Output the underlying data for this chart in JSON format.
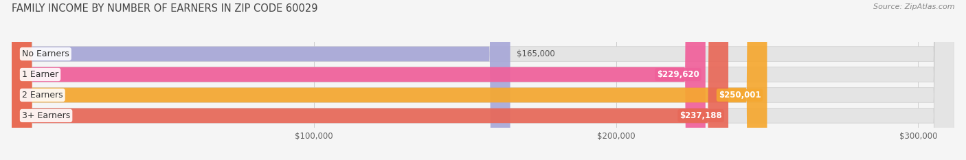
{
  "title": "FAMILY INCOME BY NUMBER OF EARNERS IN ZIP CODE 60029",
  "source": "Source: ZipAtlas.com",
  "categories": [
    "No Earners",
    "1 Earner",
    "2 Earners",
    "3+ Earners"
  ],
  "values": [
    165000,
    229620,
    250001,
    237188
  ],
  "value_labels": [
    "$165,000",
    "$229,620",
    "$250,001",
    "$237,188"
  ],
  "bar_colors": [
    "#a8a8d8",
    "#f0609a",
    "#f5a830",
    "#e86858"
  ],
  "xlim": [
    0,
    312000
  ],
  "xticks": [
    100000,
    200000,
    300000
  ],
  "xtick_labels": [
    "$100,000",
    "$200,000",
    "$300,000"
  ],
  "background_color": "#f5f5f5",
  "bar_bg_color": "#e4e4e4",
  "title_fontsize": 10.5,
  "source_fontsize": 8,
  "cat_fontsize": 9,
  "value_fontsize": 8.5,
  "tick_fontsize": 8.5,
  "bar_height": 0.72,
  "value_label_inside_color": "white",
  "value_label_outside_color": "#555555"
}
